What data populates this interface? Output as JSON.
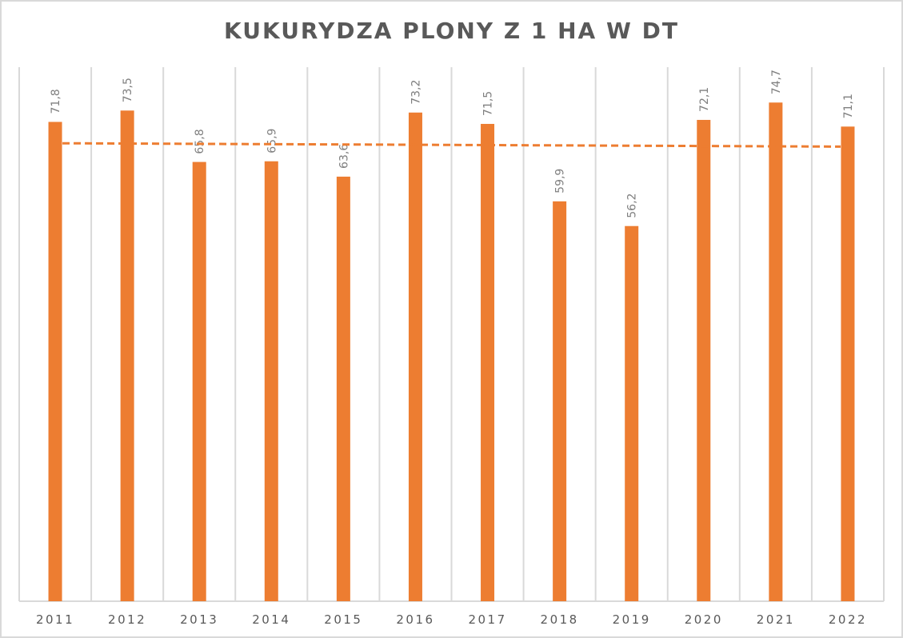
{
  "chart_data": {
    "type": "bar",
    "title": "KUKURYDZA PLONY Z 1 HA W DT",
    "xlabel": "",
    "ylabel": "",
    "categories": [
      "2011",
      "2012",
      "2013",
      "2014",
      "2015",
      "2016",
      "2017",
      "2018",
      "2019",
      "2020",
      "2021",
      "2022"
    ],
    "values": [
      71.8,
      73.5,
      65.8,
      65.9,
      63.6,
      73.2,
      71.5,
      59.9,
      56.2,
      72.1,
      74.7,
      71.1
    ],
    "value_labels": [
      "71,8",
      "73,5",
      "65,8",
      "65,9",
      "63,6",
      "73,2",
      "71,5",
      "59,9",
      "56,2",
      "72,1",
      "74,7",
      "71,1"
    ],
    "ylim": [
      0,
      80
    ],
    "grid": "vertical category gridlines",
    "legend": "none",
    "trendline": {
      "type": "linear",
      "style": "dashed",
      "start_value": 68.6,
      "end_value": 68.1
    },
    "colors": {
      "bar": "#ed7d31",
      "trend": "#ed7d31",
      "grid": "#d9d9d9",
      "text": "#595959",
      "label": "#7f7f7f"
    }
  }
}
